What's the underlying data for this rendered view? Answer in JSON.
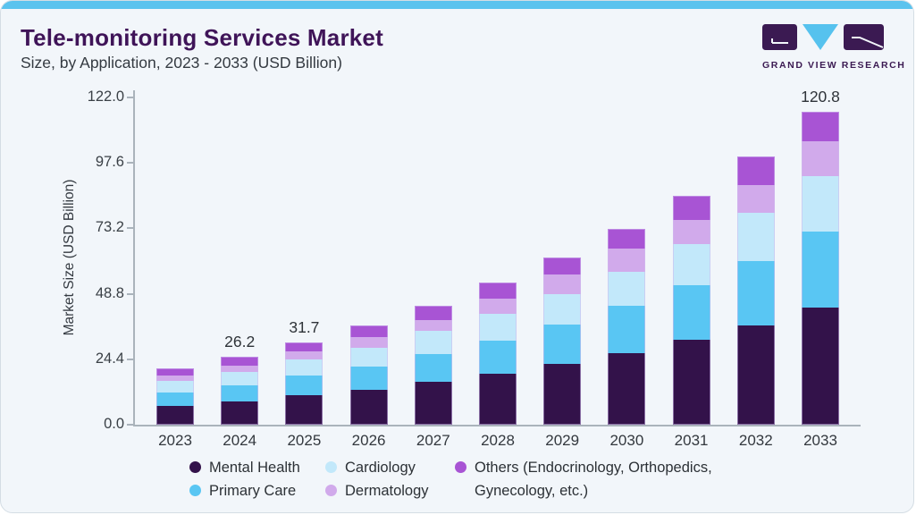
{
  "colors": {
    "accent_cyan": "#5bc3ee",
    "brand_purple": "#3f1458",
    "card_background": "#f2f6fa",
    "axis_line": "#aab3bb"
  },
  "logo": {
    "text": "GRAND VIEW RESEARCH"
  },
  "chart_data": {
    "type": "bar",
    "stacked": true,
    "title": "Tele-monitoring Services Market",
    "subtitle": "Size, by Application, 2023 - 2033 (USD Billion)",
    "ylabel": "Market Size (USD Billion)",
    "xlabel": "",
    "categories": [
      "2023",
      "2024",
      "2025",
      "2026",
      "2027",
      "2028",
      "2029",
      "2030",
      "2031",
      "2032",
      "2033"
    ],
    "series": [
      {
        "name": "Mental Health",
        "color": "#33124a",
        "values": [
          7.3,
          8.8,
          11.2,
          13.3,
          16.4,
          19.5,
          23.6,
          27.6,
          32.7,
          38.1,
          45.3
        ]
      },
      {
        "name": "Primary Care",
        "color": "#59c6f3",
        "values": [
          5.1,
          6.5,
          7.6,
          9.2,
          10.9,
          12.9,
          15.1,
          18.1,
          21.0,
          25.1,
          29.3
        ]
      },
      {
        "name": "Cardiology",
        "color": "#c2e8fa",
        "values": [
          4.5,
          5.2,
          6.2,
          7.2,
          8.8,
          10.2,
          11.8,
          13.3,
          16.1,
          18.4,
          21.2
        ]
      },
      {
        "name": "Dermatology",
        "color": "#d1aaeb",
        "values": [
          2.2,
          2.3,
          3.2,
          4.0,
          4.3,
          6.1,
          7.3,
          8.8,
          9.3,
          10.9,
          13.4
        ]
      },
      {
        "name": "Others (Endocrinology, Orthopedics, Gynecology, etc.)",
        "color": "#a854d4",
        "values": [
          2.6,
          3.4,
          3.5,
          4.6,
          5.4,
          6.0,
          6.7,
          7.8,
          9.2,
          10.9,
          11.6
        ]
      }
    ],
    "totals": [
      21.7,
      26.2,
      31.7,
      38.3,
      45.8,
      54.7,
      64.5,
      75.6,
      88.3,
      103.4,
      120.8
    ],
    "value_labels": [
      "",
      "26.2",
      "31.7",
      "",
      "",
      "",
      "",
      "",
      "",
      "",
      "120.8"
    ],
    "ytick_labels": [
      "0.0",
      "24.4",
      "48.8",
      "73.2",
      "97.6",
      "122.0"
    ],
    "ytick_values": [
      0,
      24.4,
      48.8,
      73.2,
      97.6,
      122.0
    ],
    "ylim": [
      0,
      122
    ],
    "grid": false,
    "legend_position": "bottom"
  }
}
